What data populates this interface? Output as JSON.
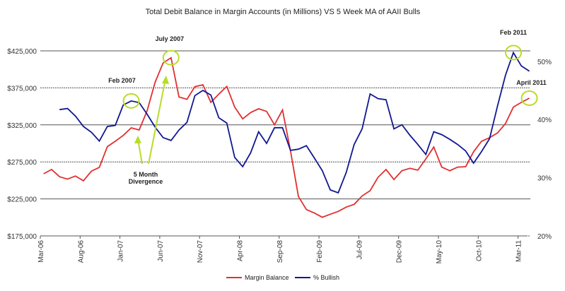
{
  "chart_data": {
    "type": "line",
    "title": "Total Debit Balance in Margin Accounts (in Millions) VS 5 Week MA of AAII Bulls",
    "x_tick_labels": [
      "Mar-06",
      "Aug-06",
      "Jan-07",
      "Jun-07",
      "Nov-07",
      "Apr-08",
      "Sep-08",
      "Feb-09",
      "Jul-09",
      "Dec-09",
      "May-10",
      "Oct-10",
      "Mar-11"
    ],
    "x_start": "Mar-06",
    "x_end": "Apr-11",
    "left_axis": {
      "ylim": [
        175000,
        425000
      ],
      "ticks": [
        "$175,000",
        "$225,000",
        "$275,000",
        "$325,000",
        "$375,000",
        "$425,000"
      ]
    },
    "right_axis": {
      "ylim": [
        20,
        51.8
      ],
      "ticks": [
        "20%",
        "30%",
        "40%",
        "50%"
      ]
    },
    "grid": true,
    "legend_position": "bottom",
    "series": [
      {
        "name": "Margin Balance",
        "axis": "left",
        "color": "#e03030",
        "start_index": 0,
        "values": [
          259000,
          264700,
          255000,
          251700,
          255900,
          249500,
          262500,
          267600,
          295600,
          302900,
          310800,
          321000,
          318100,
          344200,
          382400,
          408500,
          415700,
          362700,
          359500,
          376600,
          379200,
          355400,
          366500,
          377000,
          349000,
          333100,
          341700,
          346800,
          343200,
          325100,
          345200,
          290000,
          228200,
          210600,
          205900,
          200200,
          204300,
          208100,
          213900,
          217700,
          229000,
          236100,
          254200,
          264700,
          251100,
          263100,
          266300,
          263800,
          279000,
          295000,
          267900,
          263100,
          267900,
          268500,
          288600,
          302900,
          307700,
          314000,
          326700,
          349000,
          355400,
          361100
        ]
      },
      {
        "name": "% Bullish",
        "axis": "right",
        "color": "#101890",
        "start_index": 2,
        "values": [
          41.7,
          41.9,
          40.6,
          38.8,
          37.8,
          36.3,
          38.8,
          39.0,
          42.5,
          43.2,
          42.9,
          40.9,
          38.7,
          36.9,
          36.4,
          38.2,
          39.5,
          44.1,
          45.0,
          44.2,
          40.3,
          39.4,
          33.5,
          31.9,
          34.3,
          37.9,
          35.9,
          38.6,
          38.6,
          34.7,
          34.9,
          35.5,
          33.4,
          31.2,
          27.9,
          27.4,
          30.9,
          35.7,
          38.4,
          44.4,
          43.6,
          43.4,
          38.4,
          39.1,
          37.3,
          35.7,
          34.0,
          37.9,
          37.4,
          36.6,
          35.7,
          34.6,
          32.5,
          34.5,
          36.7,
          42.3,
          47.6,
          51.5,
          49.2,
          48.3
        ]
      }
    ],
    "annotations": [
      {
        "text": "Feb 2007",
        "series": "% Bullish",
        "index": 11
      },
      {
        "text": "July 2007",
        "series": "Margin Balance",
        "index": 16
      },
      {
        "text": "Feb 2011",
        "series": "% Bullish",
        "index": 59
      },
      {
        "text": "April 2011",
        "series": "Margin Balance",
        "index": 61
      },
      {
        "text_lines": [
          "5 Month",
          "Divergence"
        ]
      }
    ],
    "highlight_color": "#b8dc28"
  }
}
